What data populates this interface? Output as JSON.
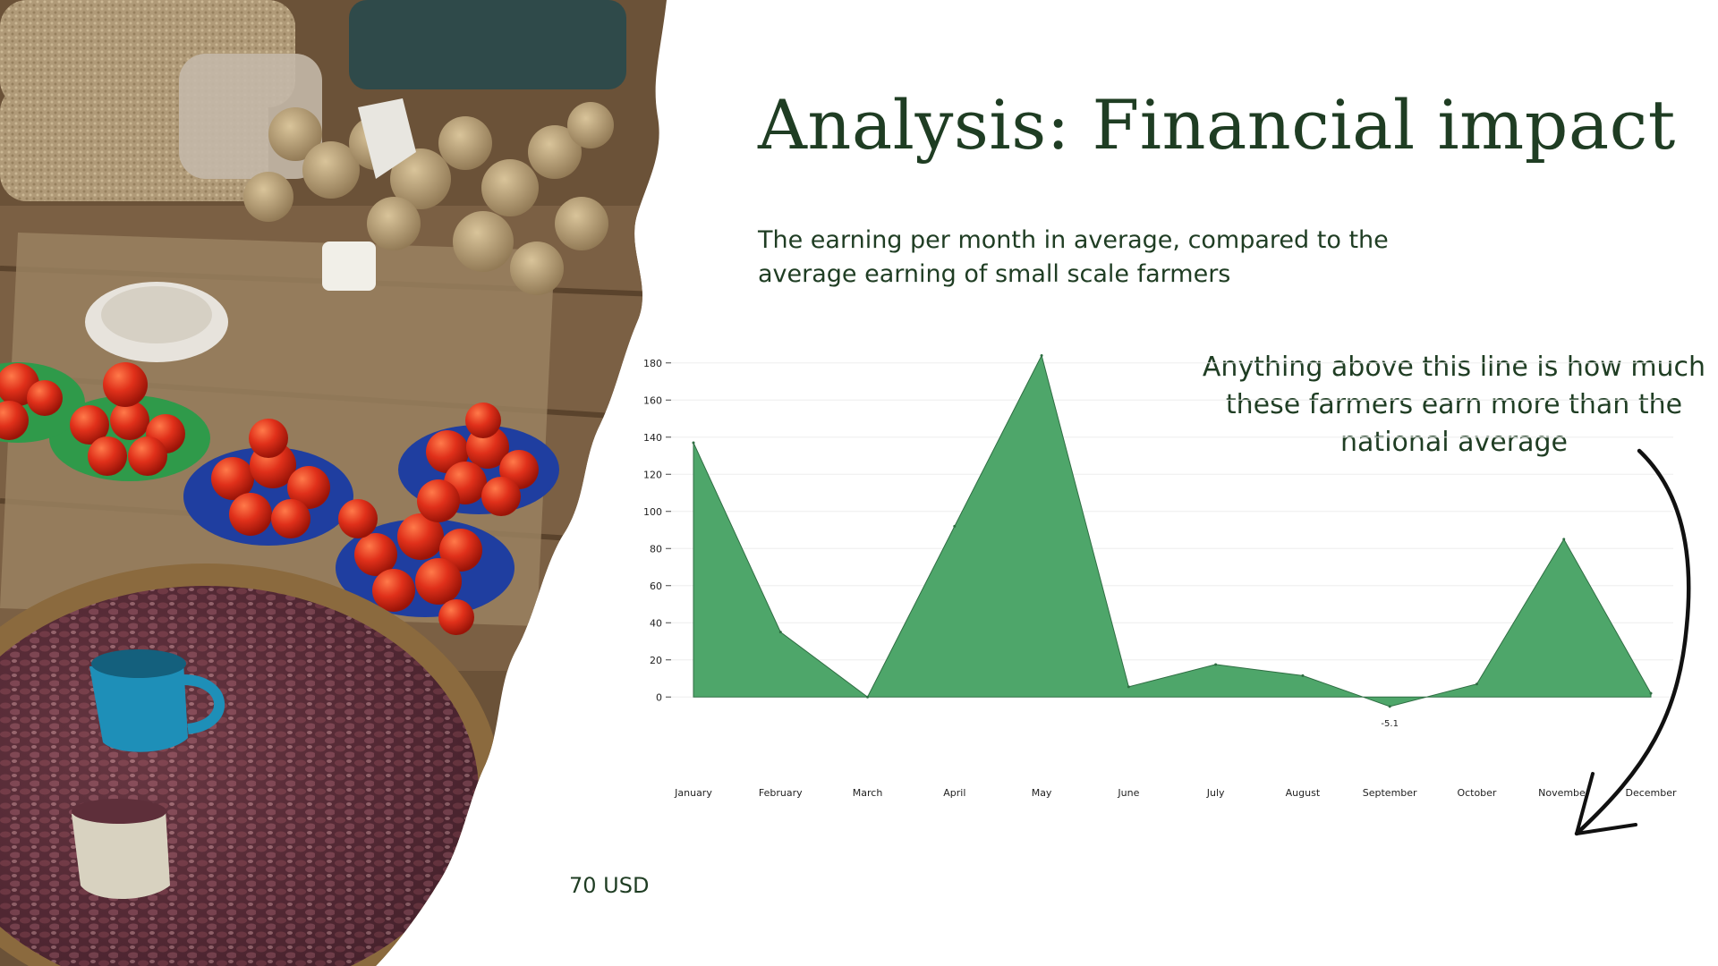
{
  "slide": {
    "title": "Analysis: Financial impact",
    "subtitle": "The earning per month in average, compared to the average earning of small scale farmers",
    "annotation": "Anything above this line is how much these farmers earn more than the national average",
    "baseline_label": "70 USD"
  },
  "colors": {
    "title_text": "#1f3d23",
    "area_fill": "#4ea66a",
    "area_stroke": "#2f6e43",
    "grid": "#eeeeee",
    "arrow": "#111111"
  },
  "chart_data": {
    "type": "area",
    "title": "",
    "xlabel": "",
    "ylabel": "",
    "categories": [
      "January",
      "February",
      "March",
      "April",
      "May",
      "June",
      "July",
      "August",
      "September",
      "October",
      "November",
      "December"
    ],
    "values": [
      137,
      35,
      0,
      92,
      184,
      5.5,
      17.5,
      11.5,
      -5.1,
      7,
      85,
      2
    ],
    "data_labels": [
      {
        "category": "September",
        "text": "-5.1"
      }
    ],
    "ylim": [
      -10,
      190
    ],
    "yticks": [
      0,
      20,
      40,
      60,
      80,
      100,
      120,
      140,
      160,
      180
    ],
    "grid": true,
    "legend": "none"
  },
  "photo": {
    "description_icons": [
      "bean-basket",
      "tomato-plates",
      "onion-sacks",
      "blue-mug"
    ]
  }
}
